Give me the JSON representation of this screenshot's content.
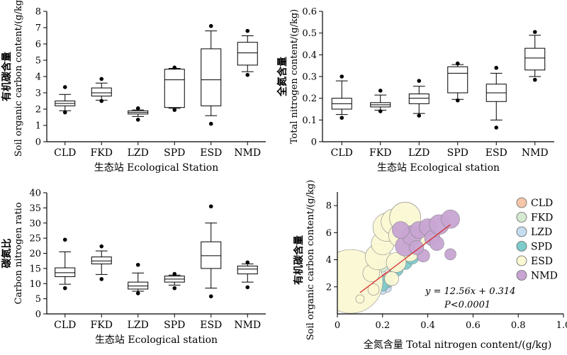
{
  "chart_data": [
    {
      "type": "boxplot",
      "id": "soc",
      "ylabel_cn": "有机碳含量",
      "ylabel_en": "Soil organic carbon content/(g/kg)",
      "xlabel": "生态站 Ecological Station",
      "ylim": [
        0,
        8
      ],
      "yticks": [
        0,
        1,
        2,
        3,
        4,
        5,
        6,
        7,
        8
      ],
      "categories": [
        "CLD",
        "FKD",
        "LZD",
        "SPD",
        "ESD",
        "NMD"
      ],
      "boxes": [
        {
          "name": "CLD",
          "whislo": 1.9,
          "q1": 2.2,
          "med": 2.35,
          "q3": 2.5,
          "whishi": 2.9,
          "fliers": [
            1.8,
            3.35
          ]
        },
        {
          "name": "FKD",
          "whislo": 2.55,
          "q1": 2.8,
          "med": 3.0,
          "q3": 3.3,
          "whishi": 3.6,
          "fliers": [
            2.5,
            3.85
          ]
        },
        {
          "name": "LZD",
          "whislo": 1.55,
          "q1": 1.7,
          "med": 1.8,
          "q3": 1.9,
          "whishi": 1.95,
          "fliers": [
            1.35,
            2.05
          ]
        },
        {
          "name": "SPD",
          "whislo": 2.05,
          "q1": 2.1,
          "med": 3.8,
          "q3": 4.45,
          "whishi": 4.5,
          "fliers": [
            1.95,
            4.55
          ]
        },
        {
          "name": "ESD",
          "whislo": 1.6,
          "q1": 2.2,
          "med": 3.8,
          "q3": 5.7,
          "whishi": 6.8,
          "fliers": [
            1.1,
            7.1
          ]
        },
        {
          "name": "NMD",
          "whislo": 4.3,
          "q1": 4.7,
          "med": 5.45,
          "q3": 6.1,
          "whishi": 6.5,
          "fliers": [
            4.1,
            6.8
          ]
        }
      ]
    },
    {
      "type": "boxplot",
      "id": "tn",
      "ylabel_cn": "全氮含量",
      "ylabel_en": "Total nitrogen content/(g/kg)",
      "xlabel": "生态站 Ecological station",
      "ylim": [
        0,
        0.6
      ],
      "yticks": [
        "0",
        "0.1",
        "0.2",
        "0.3",
        "0.4",
        "0.5",
        "0.6"
      ],
      "categories": [
        "CLD",
        "FKD",
        "LZD",
        "SPD",
        "ESD",
        "NMD"
      ],
      "boxes": [
        {
          "name": "CLD",
          "whislo": 0.125,
          "q1": 0.15,
          "med": 0.175,
          "q3": 0.2,
          "whishi": 0.28,
          "fliers": [
            0.11,
            0.3
          ]
        },
        {
          "name": "FKD",
          "whislo": 0.145,
          "q1": 0.16,
          "med": 0.17,
          "q3": 0.18,
          "whishi": 0.215,
          "fliers": [
            0.14,
            0.235
          ]
        },
        {
          "name": "LZD",
          "whislo": 0.13,
          "q1": 0.175,
          "med": 0.2,
          "q3": 0.22,
          "whishi": 0.255,
          "fliers": [
            0.12,
            0.28
          ]
        },
        {
          "name": "SPD",
          "whislo": 0.195,
          "q1": 0.225,
          "med": 0.315,
          "q3": 0.345,
          "whishi": 0.355,
          "fliers": [
            0.19,
            0.36
          ]
        },
        {
          "name": "ESD",
          "whislo": 0.1,
          "q1": 0.185,
          "med": 0.225,
          "q3": 0.265,
          "whishi": 0.315,
          "fliers": [
            0.065,
            0.34
          ]
        },
        {
          "name": "NMD",
          "whislo": 0.3,
          "q1": 0.33,
          "med": 0.385,
          "q3": 0.43,
          "whishi": 0.49,
          "fliers": [
            0.285,
            0.505
          ]
        }
      ]
    },
    {
      "type": "boxplot",
      "id": "cn",
      "ylabel_cn": "碳氮比",
      "ylabel_en": "Carbon nitrogen ratio",
      "xlabel": "生态站 Ecological station",
      "ylim": [
        0,
        40
      ],
      "yticks": [
        0,
        5,
        10,
        15,
        20,
        25,
        30,
        35,
        40
      ],
      "categories": [
        "CLD",
        "FKD",
        "LZD",
        "SPD",
        "ESD",
        "NMD"
      ],
      "boxes": [
        {
          "name": "CLD",
          "whislo": 9.8,
          "q1": 12.3,
          "med": 13.6,
          "q3": 15.2,
          "whishi": 20.5,
          "fliers": [
            8.5,
            24.5
          ]
        },
        {
          "name": "FKD",
          "whislo": 13.0,
          "q1": 16.5,
          "med": 17.5,
          "q3": 18.8,
          "whishi": 20.8,
          "fliers": [
            11.5,
            22.3
          ]
        },
        {
          "name": "LZD",
          "whislo": 7.5,
          "q1": 8.2,
          "med": 9.2,
          "q3": 10.5,
          "whishi": 13.5,
          "fliers": [
            6.8,
            16.2
          ]
        },
        {
          "name": "SPD",
          "whislo": 9.5,
          "q1": 10.5,
          "med": 11.5,
          "q3": 12.5,
          "whishi": 12.8,
          "fliers": [
            8.5,
            13.2
          ]
        },
        {
          "name": "ESD",
          "whislo": 8.5,
          "q1": 15.0,
          "med": 19.2,
          "q3": 23.8,
          "whishi": 30.0,
          "fliers": [
            5.8,
            35.5
          ]
        },
        {
          "name": "NMD",
          "whislo": 10.5,
          "q1": 13.2,
          "med": 14.8,
          "q3": 15.8,
          "whishi": 16.5,
          "fliers": [
            8.8,
            17.0
          ]
        }
      ]
    },
    {
      "type": "bubble_scatter",
      "id": "reg",
      "ylabel_cn": "有机碳含量",
      "ylabel_en": "Soil organic carbon content/(g/kg)",
      "xlabel": "全氮含量 Total nitrogen content/(g/kg)",
      "xlim": [
        0,
        1.0
      ],
      "ylim": [
        0,
        9
      ],
      "xticks": [
        "0",
        "0.2",
        "0.4",
        "0.6",
        "0.8",
        "1.0"
      ],
      "yticks": [
        2,
        4,
        6,
        8
      ],
      "equation": "y = 12.56x + 0.314",
      "pvalue": "P<0.0001",
      "fit": {
        "slope": 12.56,
        "intercept": 0.314,
        "x0": 0.1,
        "x1": 0.5
      },
      "series": [
        {
          "name": "CLD",
          "color": "#F7C6A8",
          "points": [
            [
              0.15,
              2.3,
              7
            ],
            [
              0.17,
              2.5,
              8
            ],
            [
              0.2,
              2.4,
              7
            ],
            [
              0.13,
              2.1,
              6
            ],
            [
              0.22,
              2.7,
              7
            ]
          ]
        },
        {
          "name": "FKD",
          "color": "#D5EAD0",
          "points": [
            [
              0.17,
              3.0,
              8
            ],
            [
              0.18,
              3.3,
              7
            ],
            [
              0.16,
              2.8,
              7
            ],
            [
              0.2,
              3.5,
              8
            ]
          ]
        },
        {
          "name": "LZD",
          "color": "#C6DDEF",
          "points": [
            [
              0.12,
              1.5,
              5
            ],
            [
              0.18,
              1.8,
              6
            ],
            [
              0.22,
              1.9,
              6
            ],
            [
              0.2,
              1.7,
              5
            ]
          ]
        },
        {
          "name": "SPD",
          "color": "#7ECBCB",
          "points": [
            [
              0.22,
              2.4,
              9
            ],
            [
              0.26,
              3.3,
              10
            ],
            [
              0.3,
              3.8,
              10
            ],
            [
              0.33,
              4.2,
              10
            ],
            [
              0.2,
              2.1,
              8
            ]
          ]
        },
        {
          "name": "ESD",
          "color": "#FBF8D4",
          "points": [
            [
              0.06,
              2.4,
              45
            ],
            [
              0.1,
              1.1,
              6
            ],
            [
              0.15,
              3.0,
              12
            ],
            [
              0.18,
              4.2,
              18
            ],
            [
              0.2,
              5.2,
              16
            ],
            [
              0.22,
              6.4,
              20
            ],
            [
              0.25,
              6.8,
              18
            ],
            [
              0.28,
              5.8,
              17
            ],
            [
              0.3,
              7.1,
              22
            ],
            [
              0.32,
              4.6,
              14
            ],
            [
              0.34,
              5.5,
              16
            ],
            [
              0.26,
              3.8,
              14
            ],
            [
              0.24,
              2.6,
              10
            ],
            [
              0.16,
              1.8,
              8
            ]
          ]
        },
        {
          "name": "NMD",
          "color": "#C7A4D3",
          "points": [
            [
              0.3,
              5.0,
              14
            ],
            [
              0.33,
              5.8,
              14
            ],
            [
              0.36,
              6.2,
              12
            ],
            [
              0.4,
              6.4,
              12
            ],
            [
              0.42,
              5.6,
              11
            ],
            [
              0.45,
              6.6,
              14
            ],
            [
              0.5,
              7.0,
              13
            ],
            [
              0.38,
              4.3,
              9
            ],
            [
              0.5,
              4.4,
              8
            ],
            [
              0.44,
              5.2,
              10
            ],
            [
              0.28,
              6.2,
              12
            ],
            [
              0.35,
              4.9,
              10
            ]
          ]
        }
      ],
      "legend_position": "right"
    }
  ]
}
